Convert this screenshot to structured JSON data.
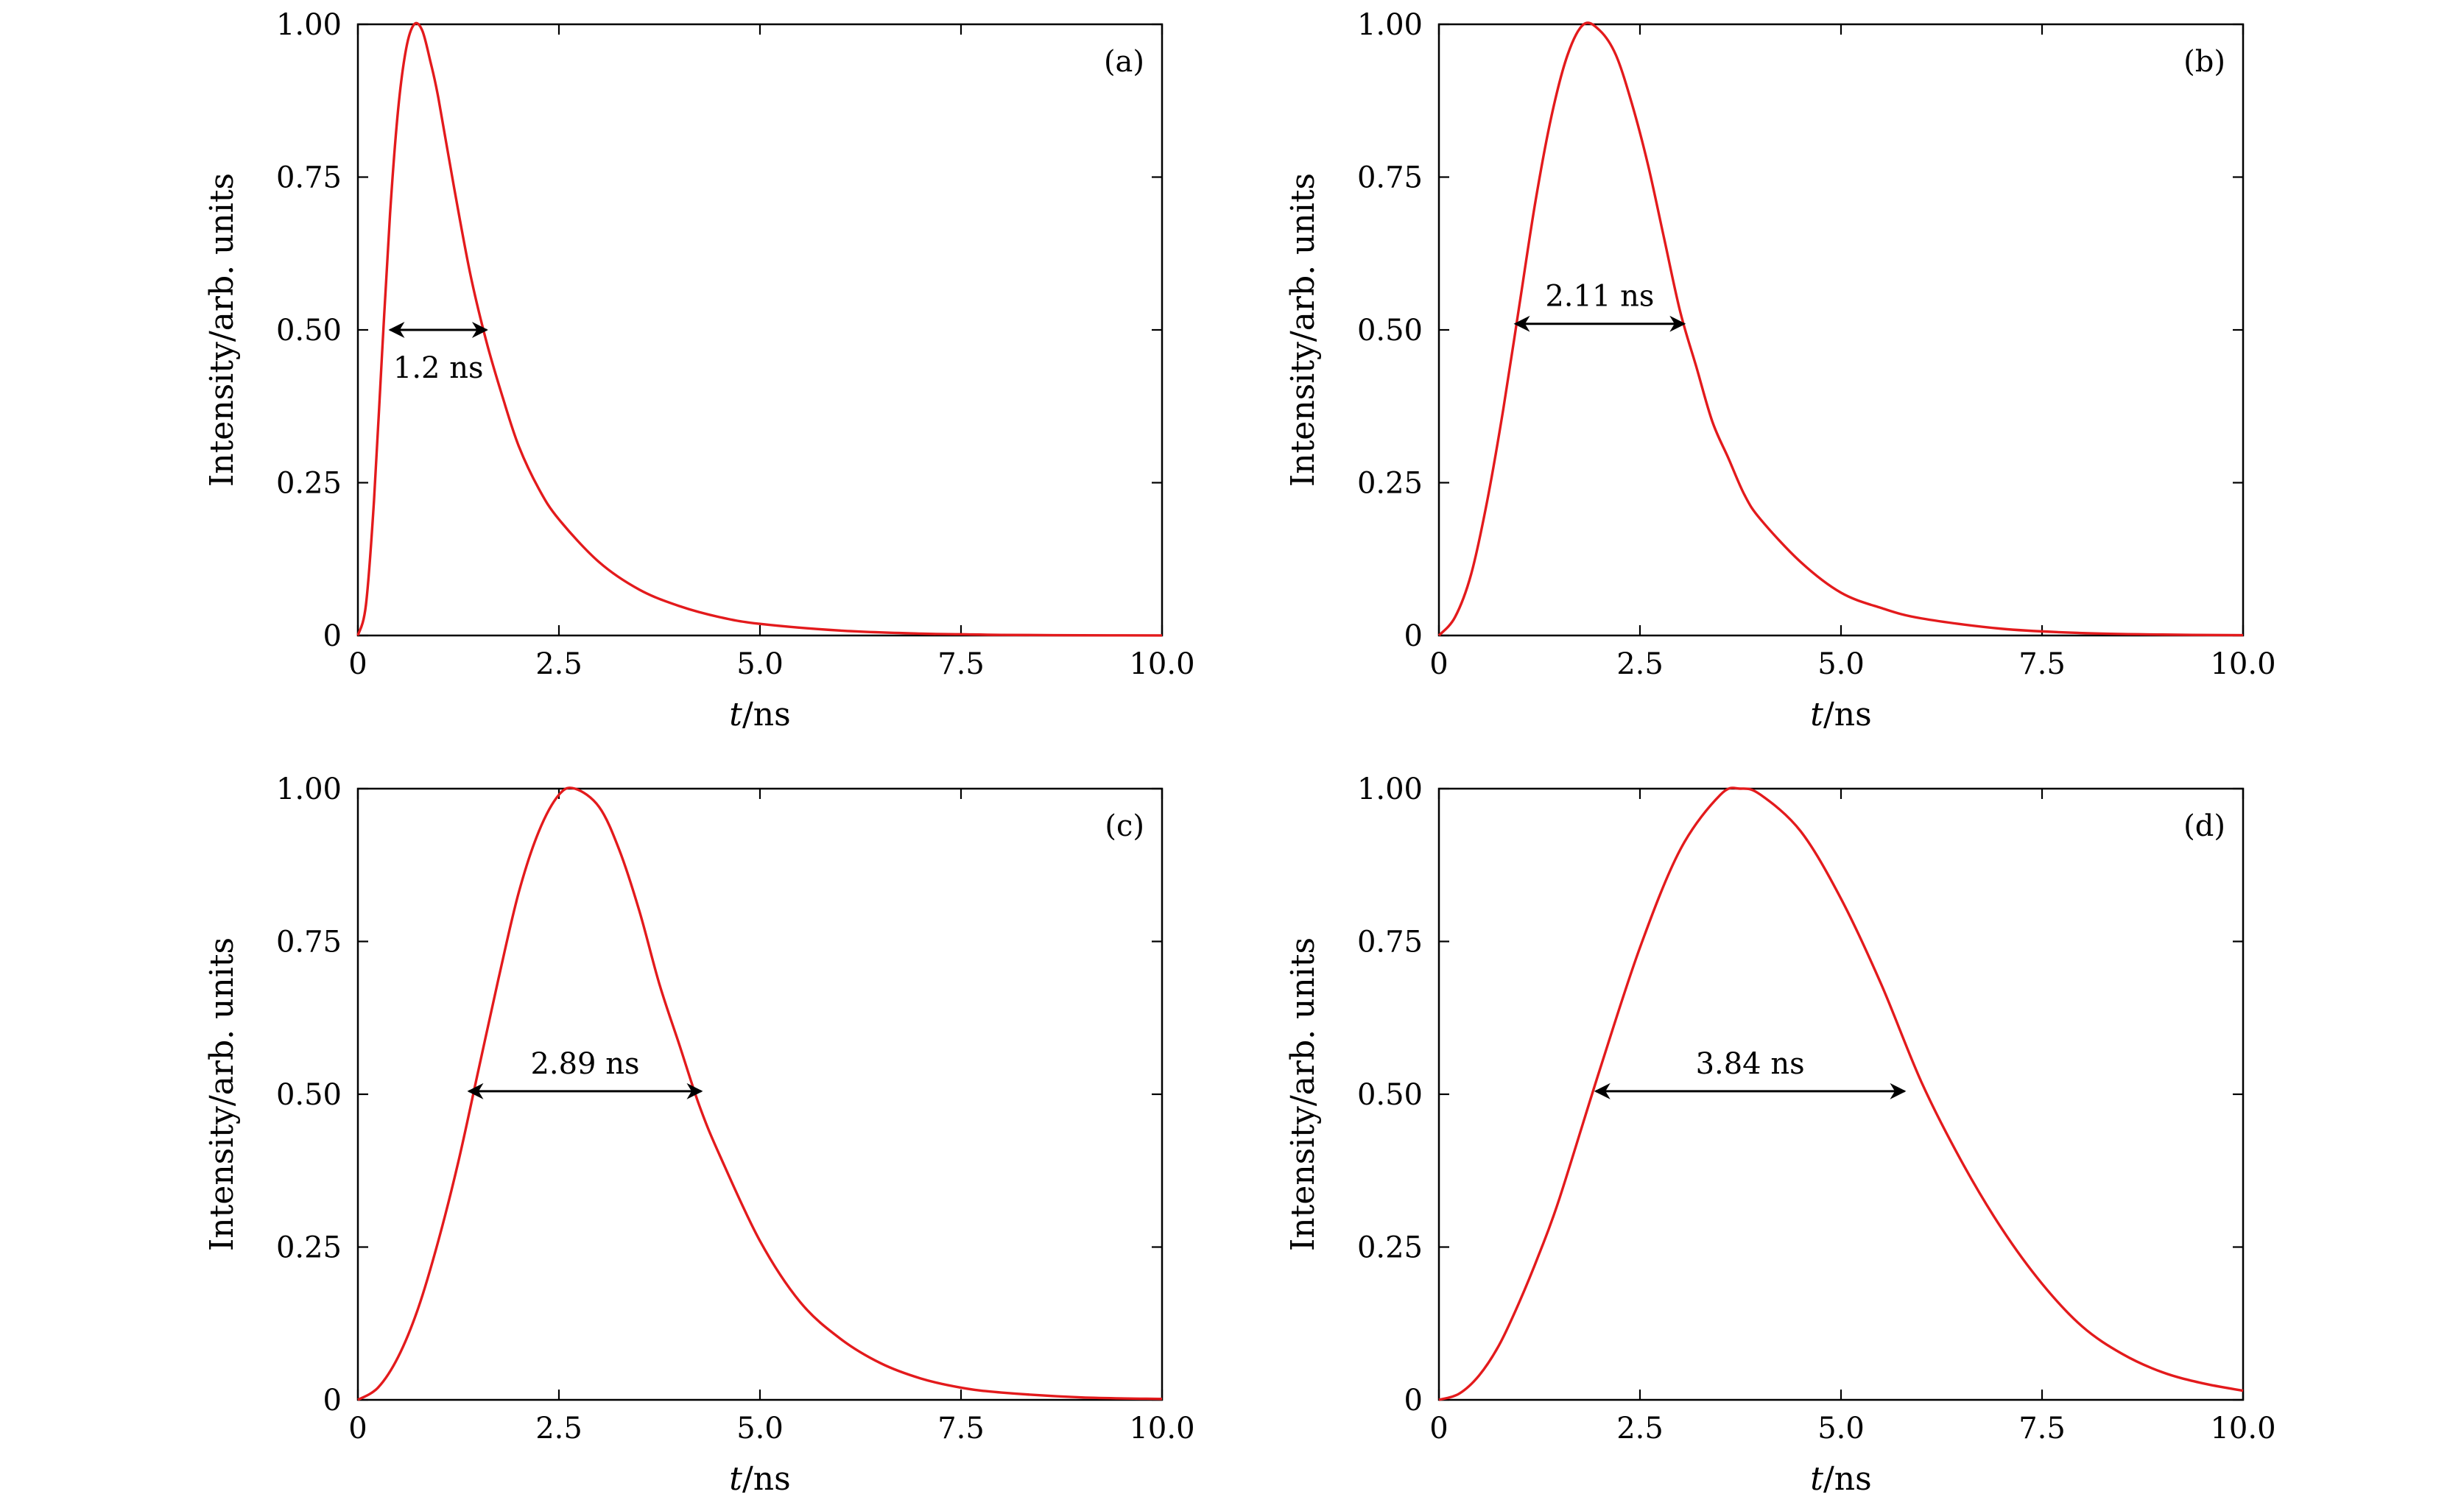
{
  "chart_data": [
    {
      "type": "line",
      "panel_label": "(a)",
      "xlabel_var": "t",
      "xlabel_unit": "/ns",
      "ylabel": "Intensity/arb. units",
      "xlim": [
        0,
        10
      ],
      "ylim": [
        0,
        1
      ],
      "xticks": [
        "0",
        "2.5",
        "5.0",
        "7.5",
        "10.0"
      ],
      "yticks": [
        "0",
        "0.25",
        "0.50",
        "0.75",
        "1.00"
      ],
      "grid": false,
      "series": [
        {
          "color": "#e31a1c",
          "x": [
            0,
            0.1,
            0.2,
            0.3,
            0.4,
            0.5,
            0.6,
            0.7,
            0.8,
            0.9,
            1.0,
            1.2,
            1.4,
            1.6,
            1.8,
            2.0,
            2.25,
            2.5,
            3.0,
            3.5,
            4.0,
            4.5,
            5.0,
            6.0,
            7.0,
            7.5,
            8.0,
            9.0,
            10.0
          ],
          "y": [
            0,
            0.05,
            0.22,
            0.46,
            0.69,
            0.86,
            0.96,
            1.0,
            0.99,
            0.94,
            0.88,
            0.73,
            0.59,
            0.48,
            0.39,
            0.31,
            0.24,
            0.19,
            0.12,
            0.075,
            0.048,
            0.03,
            0.019,
            0.008,
            0.003,
            0.002,
            0.001,
            0.0004,
            0.0001
          ]
        }
      ],
      "fwhm": {
        "label": "1.2 ns",
        "x_start": 0.4,
        "x_end": 1.6,
        "y": 0.5
      }
    },
    {
      "type": "line",
      "panel_label": "(b)",
      "xlabel_var": "t",
      "xlabel_unit": "/ns",
      "ylabel": "Intensity/arb. units",
      "xlim": [
        0,
        10
      ],
      "ylim": [
        0,
        1
      ],
      "xticks": [
        "0",
        "2.5",
        "5.0",
        "7.5",
        "10.0"
      ],
      "yticks": [
        "0",
        "0.25",
        "0.50",
        "0.75",
        "1.00"
      ],
      "grid": false,
      "series": [
        {
          "color": "#e31a1c",
          "x": [
            0,
            0.2,
            0.4,
            0.6,
            0.8,
            1.0,
            1.2,
            1.4,
            1.6,
            1.8,
            2.0,
            2.2,
            2.4,
            2.6,
            2.8,
            3.0,
            3.2,
            3.4,
            3.6,
            3.8,
            4.0,
            4.5,
            5.0,
            5.5,
            6.0,
            7.0,
            8.0,
            9.0,
            10.0
          ],
          "y": [
            0,
            0.03,
            0.1,
            0.22,
            0.37,
            0.54,
            0.71,
            0.85,
            0.95,
            1.0,
            0.99,
            0.95,
            0.87,
            0.77,
            0.65,
            0.53,
            0.44,
            0.35,
            0.29,
            0.23,
            0.19,
            0.12,
            0.07,
            0.045,
            0.028,
            0.011,
            0.004,
            0.0015,
            0.0005
          ]
        }
      ],
      "fwhm": {
        "label": "2.11 ns",
        "x_start": 0.95,
        "x_end": 3.05,
        "y": 0.51
      }
    },
    {
      "type": "line",
      "panel_label": "(c)",
      "xlabel_var": "t",
      "xlabel_unit": "/ns",
      "ylabel": "Intensity/arb. units",
      "xlim": [
        0,
        10
      ],
      "ylim": [
        0,
        1
      ],
      "xticks": [
        "0",
        "2.5",
        "5.0",
        "7.5",
        "10.0"
      ],
      "yticks": [
        "0",
        "0.25",
        "0.50",
        "0.75",
        "1.00"
      ],
      "grid": false,
      "series": [
        {
          "color": "#e31a1c",
          "x": [
            0,
            0.25,
            0.5,
            0.75,
            1.0,
            1.25,
            1.5,
            1.75,
            2.0,
            2.25,
            2.5,
            2.7,
            3.0,
            3.25,
            3.5,
            3.75,
            4.0,
            4.25,
            4.5,
            5.0,
            5.5,
            6.0,
            6.5,
            7.0,
            7.5,
            8.0,
            9.0,
            10.0
          ],
          "y": [
            0,
            0.02,
            0.07,
            0.15,
            0.26,
            0.39,
            0.54,
            0.69,
            0.83,
            0.93,
            0.99,
            1.0,
            0.97,
            0.9,
            0.8,
            0.68,
            0.58,
            0.48,
            0.4,
            0.26,
            0.16,
            0.1,
            0.06,
            0.035,
            0.02,
            0.012,
            0.004,
            0.0015
          ]
        }
      ],
      "fwhm": {
        "label": "2.89 ns",
        "x_start": 1.38,
        "x_end": 4.27,
        "y": 0.505
      }
    },
    {
      "type": "line",
      "panel_label": "(d)",
      "xlabel_var": "t",
      "xlabel_unit": "/ns",
      "ylabel": "Intensity/arb. units",
      "xlim": [
        0,
        10
      ],
      "ylim": [
        0,
        1
      ],
      "xticks": [
        "0",
        "2.5",
        "5.0",
        "7.5",
        "10.0"
      ],
      "yticks": [
        "0",
        "0.25",
        "0.50",
        "0.75",
        "1.00"
      ],
      "grid": false,
      "series": [
        {
          "color": "#e31a1c",
          "x": [
            0,
            0.25,
            0.5,
            0.75,
            1.0,
            1.25,
            1.5,
            2.0,
            2.5,
            3.0,
            3.5,
            3.75,
            4.0,
            4.5,
            5.0,
            5.5,
            6.0,
            6.5,
            7.0,
            7.5,
            8.0,
            8.5,
            9.0,
            9.5,
            10.0
          ],
          "y": [
            0,
            0.01,
            0.04,
            0.09,
            0.16,
            0.24,
            0.33,
            0.54,
            0.74,
            0.9,
            0.99,
            1.0,
            0.99,
            0.93,
            0.82,
            0.68,
            0.52,
            0.39,
            0.28,
            0.19,
            0.12,
            0.075,
            0.045,
            0.027,
            0.015
          ]
        }
      ],
      "fwhm": {
        "label": "3.84 ns",
        "x_start": 1.95,
        "x_end": 5.79,
        "y": 0.505
      }
    }
  ]
}
